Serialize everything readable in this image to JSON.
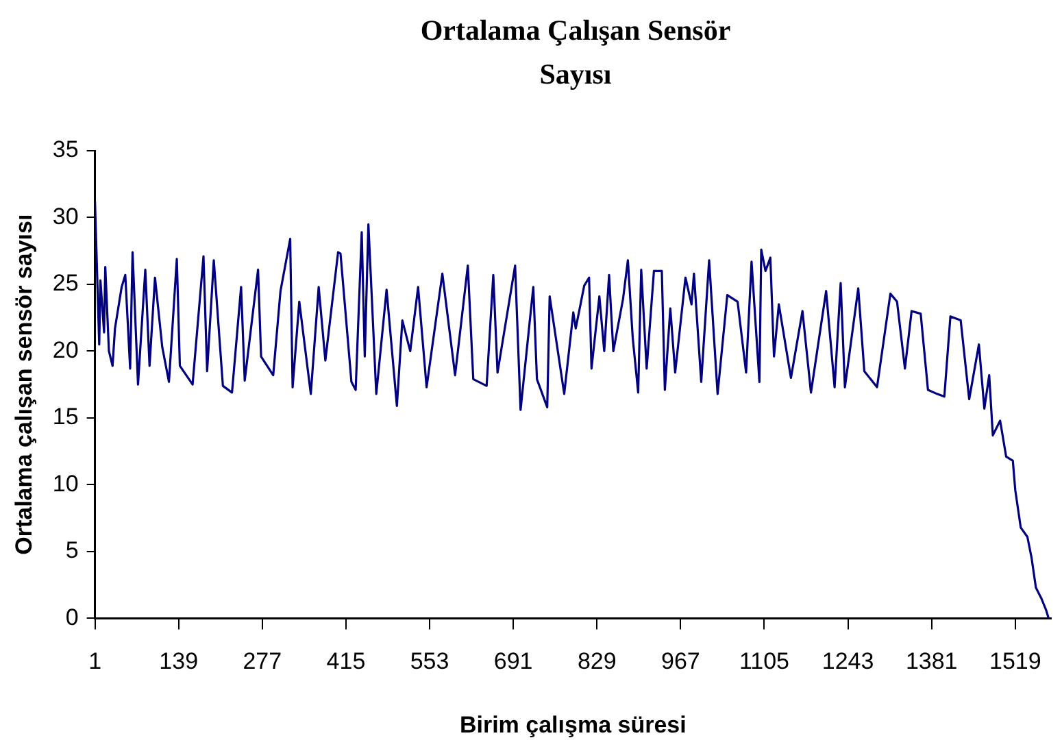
{
  "chart_data": {
    "type": "line",
    "title": "Ortalama Çalışan Sensör Sayısı",
    "xlabel": "Birim çalışma süresi",
    "ylabel": "Ortalama çalışan sensör sayısı",
    "xlim": [
      1,
      1578
    ],
    "xticks": [
      1,
      139,
      277,
      415,
      553,
      691,
      829,
      967,
      1105,
      1243,
      1381,
      1519
    ],
    "ylim": [
      0,
      35
    ],
    "yticks": [
      0,
      5,
      10,
      15,
      20,
      25,
      30,
      35
    ],
    "grid": false,
    "legend": false,
    "marker": "none",
    "line_style": "solid",
    "series": [
      {
        "color": "#000080",
        "x": [
          1,
          8,
          10,
          16,
          18,
          24,
          30,
          34,
          45,
          51,
          59,
          63,
          72,
          84,
          91,
          100,
          112,
          123,
          136,
          141,
          162,
          180,
          186,
          197,
          212,
          227,
          242,
          248,
          270,
          275,
          295,
          307,
          323,
          327,
          338,
          357,
          370,
          381,
          402,
          406,
          424,
          431,
          441,
          446,
          452,
          465,
          482,
          499,
          508,
          521,
          534,
          548,
          574,
          595,
          616,
          625,
          647,
          658,
          665,
          694,
          703,
          724,
          730,
          747,
          751,
          775,
          790,
          794,
          808,
          816,
          820,
          833,
          841,
          849,
          856,
          872,
          880,
          888,
          897,
          902,
          911,
          923,
          936,
          941,
          950,
          958,
          975,
          985,
          989,
          1001,
          1014,
          1028,
          1044,
          1061,
          1075,
          1084,
          1097,
          1100,
          1107,
          1115,
          1121,
          1129,
          1149,
          1168,
          1182,
          1207,
          1221,
          1231,
          1238,
          1260,
          1270,
          1291,
          1313,
          1324,
          1337,
          1348,
          1363,
          1375,
          1390,
          1402,
          1412,
          1429,
          1443,
          1459,
          1468,
          1476,
          1482,
          1494,
          1504,
          1515,
          1519,
          1528,
          1539,
          1546,
          1553,
          1562,
          1570,
          1574
        ],
        "values": [
          31.2,
          20.5,
          25.3,
          21.4,
          26.3,
          20,
          18.9,
          21.7,
          24.8,
          25.7,
          18.7,
          27.4,
          17.5,
          26.1,
          18.9,
          25.5,
          20.3,
          17.7,
          26.9,
          18.9,
          17.5,
          27.1,
          18.5,
          26.8,
          17.4,
          16.9,
          24.8,
          17.8,
          26.1,
          19.6,
          18.2,
          24.5,
          28.4,
          17.3,
          23.7,
          16.8,
          24.8,
          19.3,
          27.4,
          27.3,
          17.7,
          17.1,
          28.9,
          19.6,
          29.5,
          16.8,
          24.6,
          15.9,
          22.3,
          20,
          24.8,
          17.3,
          25.8,
          18.2,
          26.4,
          17.9,
          17.4,
          25.7,
          18.4,
          26.4,
          15.6,
          24.8,
          17.9,
          15.8,
          24.1,
          16.8,
          22.9,
          21.7,
          24.9,
          25.5,
          18.7,
          24.1,
          20,
          25.7,
          20,
          23.9,
          26.8,
          21,
          16.9,
          26.1,
          18.7,
          26,
          26,
          17.1,
          23.2,
          18.4,
          25.5,
          23.5,
          25.8,
          17.7,
          26.8,
          16.8,
          24.2,
          23.7,
          18.4,
          26.7,
          17.7,
          27.6,
          26,
          27,
          19.6,
          23.5,
          18,
          23,
          16.9,
          24.5,
          17.3,
          25.1,
          17.3,
          24.7,
          18.5,
          17.3,
          24.3,
          23.7,
          18.7,
          23,
          22.8,
          17.1,
          16.8,
          16.6,
          22.6,
          22.3,
          16.4,
          20.5,
          15.7,
          18.2,
          13.7,
          14.8,
          12.1,
          11.8,
          9.6,
          6.8,
          6.1,
          4.5,
          2.3,
          1.5,
          0.6,
          0
        ]
      }
    ]
  }
}
